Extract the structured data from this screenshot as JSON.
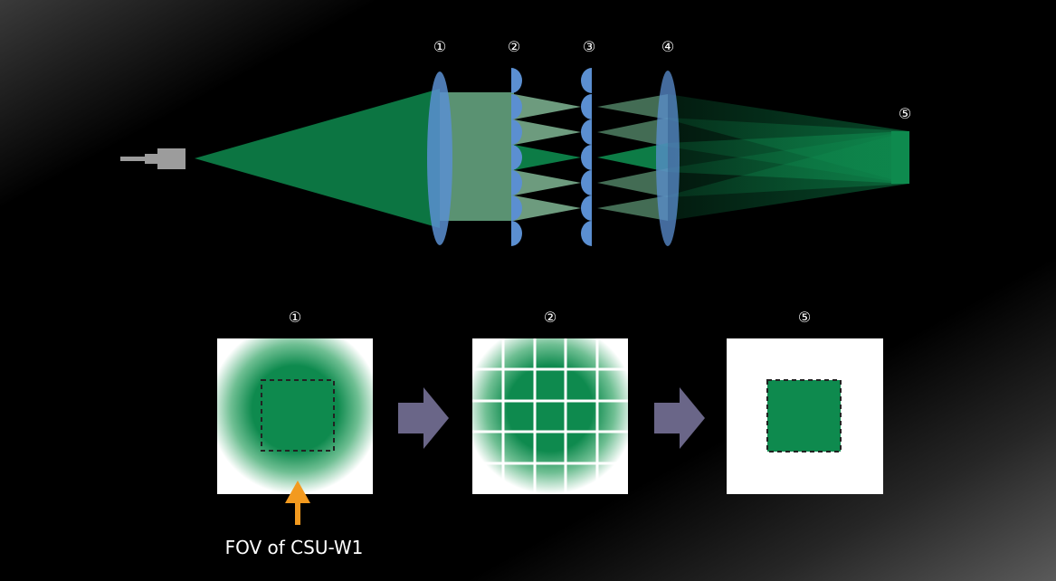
{
  "colors": {
    "background": "#000000",
    "beam_green": "#0e8a4e",
    "lens_blue": "#5b8fd1",
    "arrow_gray": "#6a6688",
    "fov_arrow_orange": "#f39a1f",
    "panel_white": "#ffffff"
  },
  "top_labels": {
    "l1": "①",
    "l2": "②",
    "l3": "③",
    "l4": "④",
    "l5": "⑤"
  },
  "panels": [
    {
      "label": "①",
      "content": "gaussian beam spot with dashed FOV square"
    },
    {
      "label": "②",
      "content": "beam spot divided by grid"
    },
    {
      "label": "⑤",
      "content": "uniform square with dashed border"
    }
  ],
  "fov_caption": "FOV of CSU-W1",
  "icons": [
    "light-source-icon",
    "next-step-arrow-icon",
    "fov-pointer-arrow-icon"
  ]
}
